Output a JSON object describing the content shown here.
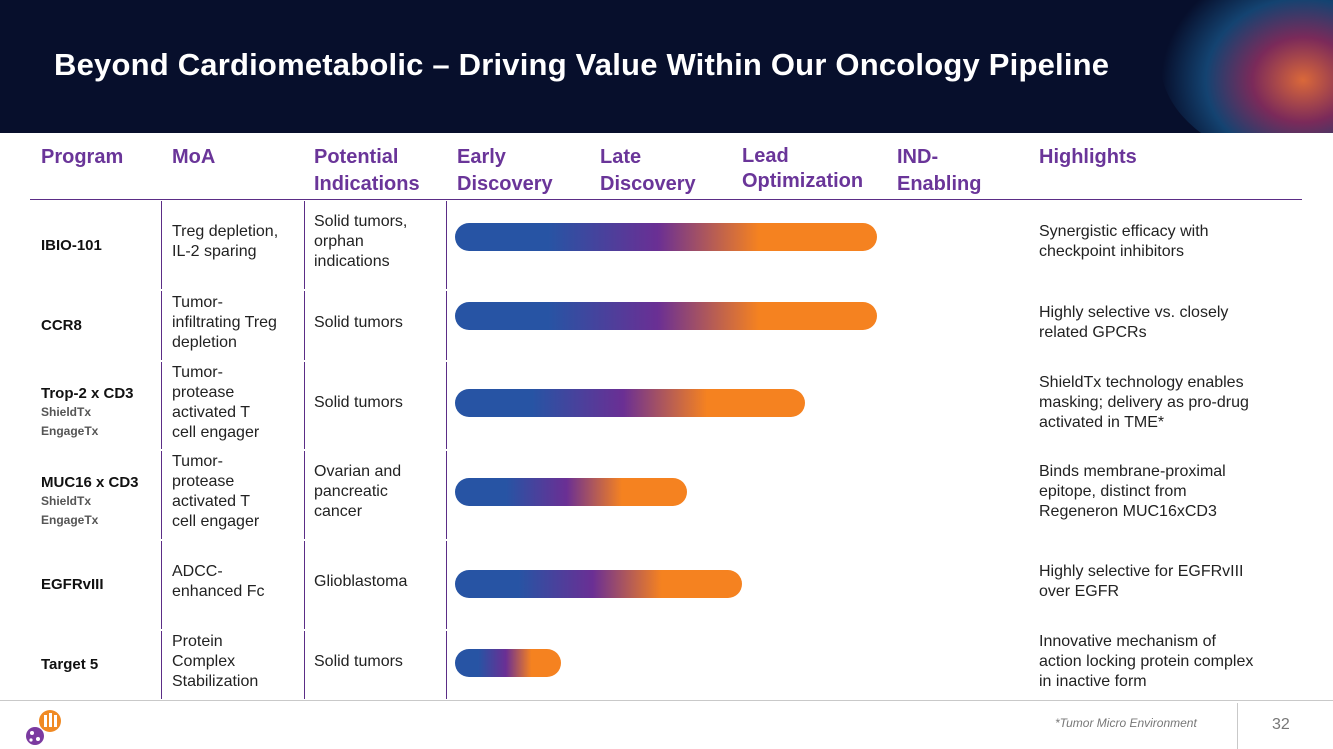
{
  "slide": {
    "title": "Beyond Cardiometabolic – Driving Value Within Our Oncology Pipeline",
    "page_number": "32",
    "footnote": "*Tumor Micro Environment"
  },
  "headers": {
    "program": "Program",
    "moa": "MoA",
    "indications_1": "Potential",
    "indications_2": "Indications",
    "early_1": "Early",
    "early_2": "Discovery",
    "late_1": "Late",
    "late_2": "Discovery",
    "lead_1": "Lead",
    "lead_2": "Optimization",
    "ind_1": "IND-",
    "ind_2": "Enabling",
    "highlights": "Highlights"
  },
  "rows": [
    {
      "program": "IBIO-101",
      "sub1": "",
      "sub2": "",
      "moa": [
        "Treg depletion,",
        "IL-2 sparing"
      ],
      "indication": [
        "Solid tumors,",
        "orphan",
        "indications"
      ],
      "progress_pct": 100,
      "highlight": [
        "Synergistic efficacy with",
        "checkpoint inhibitors"
      ]
    },
    {
      "program": "CCR8",
      "sub1": "",
      "sub2": "",
      "moa": [
        "Tumor-",
        "infiltrating Treg",
        "depletion"
      ],
      "indication": [
        "Solid tumors"
      ],
      "progress_pct": 100,
      "highlight": [
        "Highly selective vs. closely",
        "related GPCRs"
      ]
    },
    {
      "program": "Trop-2 x CD3",
      "sub1": "ShieldTx",
      "sub2": "EngageTx",
      "moa": [
        "Tumor-",
        "protease",
        "activated T",
        "cell engager"
      ],
      "indication": [
        "Solid tumors"
      ],
      "progress_pct": 83,
      "highlight": [
        "ShieldTx technology enables",
        "masking; delivery as pro-drug",
        "activated in TME*"
      ]
    },
    {
      "program": "MUC16 x CD3",
      "sub1": "ShieldTx",
      "sub2": "EngageTx",
      "moa": [
        "Tumor-",
        "protease",
        "activated T",
        "cell engager"
      ],
      "indication": [
        "Ovarian and",
        "pancreatic",
        "cancer"
      ],
      "progress_pct": 55,
      "highlight": [
        "Binds membrane-proximal",
        "epitope, distinct from",
        "Regeneron MUC16xCD3"
      ]
    },
    {
      "program": "EGFRvIII",
      "sub1": "",
      "sub2": "",
      "moa": [
        "ADCC-",
        "enhanced Fc"
      ],
      "indication": [
        "Glioblastoma"
      ],
      "progress_pct": 68,
      "highlight": [
        "Highly selective for EGFRvIII",
        "over EGFR"
      ]
    },
    {
      "program": "Target 5",
      "sub1": "",
      "sub2": "",
      "moa": [
        "Protein",
        "Complex",
        "Stabilization"
      ],
      "indication": [
        "Solid tumors"
      ],
      "progress_pct": 25,
      "highlight": [
        "Innovative mechanism of",
        "action locking protein complex",
        "in inactive form"
      ]
    }
  ],
  "colors": {
    "bar_start": "#2754a4",
    "bar_mid": "#6a2f94",
    "bar_end": "#f58220",
    "accent": "#6a3599"
  }
}
